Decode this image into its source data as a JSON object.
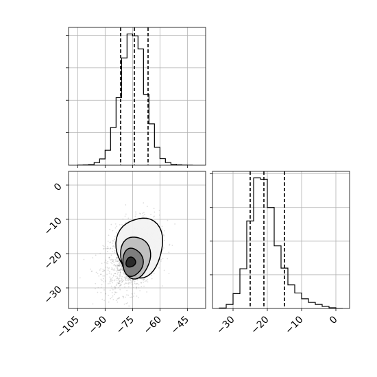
{
  "chart_data": [
    {
      "type": "histogram",
      "panel": "top-left",
      "variable_index": 0,
      "xlim": [
        -110,
        -35
      ],
      "bin_edges": [
        -105,
        -102,
        -99,
        -96,
        -93,
        -90,
        -87,
        -84,
        -81,
        -78,
        -75,
        -72,
        -69,
        -66,
        -63,
        -60,
        -57,
        -54,
        -51,
        -48,
        -45,
        -42
      ],
      "counts": [
        1,
        2,
        5,
        20,
        48,
        115,
        290,
        520,
        825,
        1010,
        995,
        895,
        545,
        318,
        138,
        50,
        20,
        7,
        3,
        1,
        0
      ],
      "quantile_lines": [
        -81.5,
        -74,
        -66.5
      ],
      "grid": true,
      "tick_labels_hidden": true
    },
    {
      "type": "heatmap",
      "panel": "bottom-left",
      "subtype": "2d-density-with-contours",
      "xlim": [
        -110,
        -35
      ],
      "ylim": [
        -36,
        4
      ],
      "x_ticks": [
        -105,
        -90,
        -75,
        -60,
        -45
      ],
      "y_ticks": [
        0,
        -10,
        -20,
        -30
      ],
      "density_peak": [
        -75.5,
        -22.5
      ],
      "contours_filled": true,
      "grid": true
    },
    {
      "type": "histogram",
      "panel": "bottom-right",
      "variable_index": 1,
      "xlim": [
        -36,
        4
      ],
      "bin_edges": [
        -34,
        -32,
        -30,
        -28,
        -26,
        -24,
        -22,
        -20,
        -18,
        -16,
        -14,
        -12,
        -10,
        -8,
        -6,
        -4,
        -2,
        0,
        2
      ],
      "counts": [
        3,
        30,
        110,
        295,
        650,
        970,
        960,
        750,
        465,
        300,
        175,
        115,
        72,
        45,
        30,
        15,
        5,
        0
      ],
      "quantile_lines": [
        -25,
        -21,
        -15
      ],
      "x_ticks": [
        -30,
        -20,
        -10,
        0
      ],
      "grid": true
    }
  ],
  "axis_text": {
    "x1_ticks": [
      "−105",
      "−90",
      "−75",
      "−60",
      "−45"
    ],
    "y2_ticks": [
      "0",
      "−10",
      "−20",
      "−30"
    ],
    "x2_ticks": [
      "−30",
      "−20",
      "−10",
      "0"
    ]
  }
}
